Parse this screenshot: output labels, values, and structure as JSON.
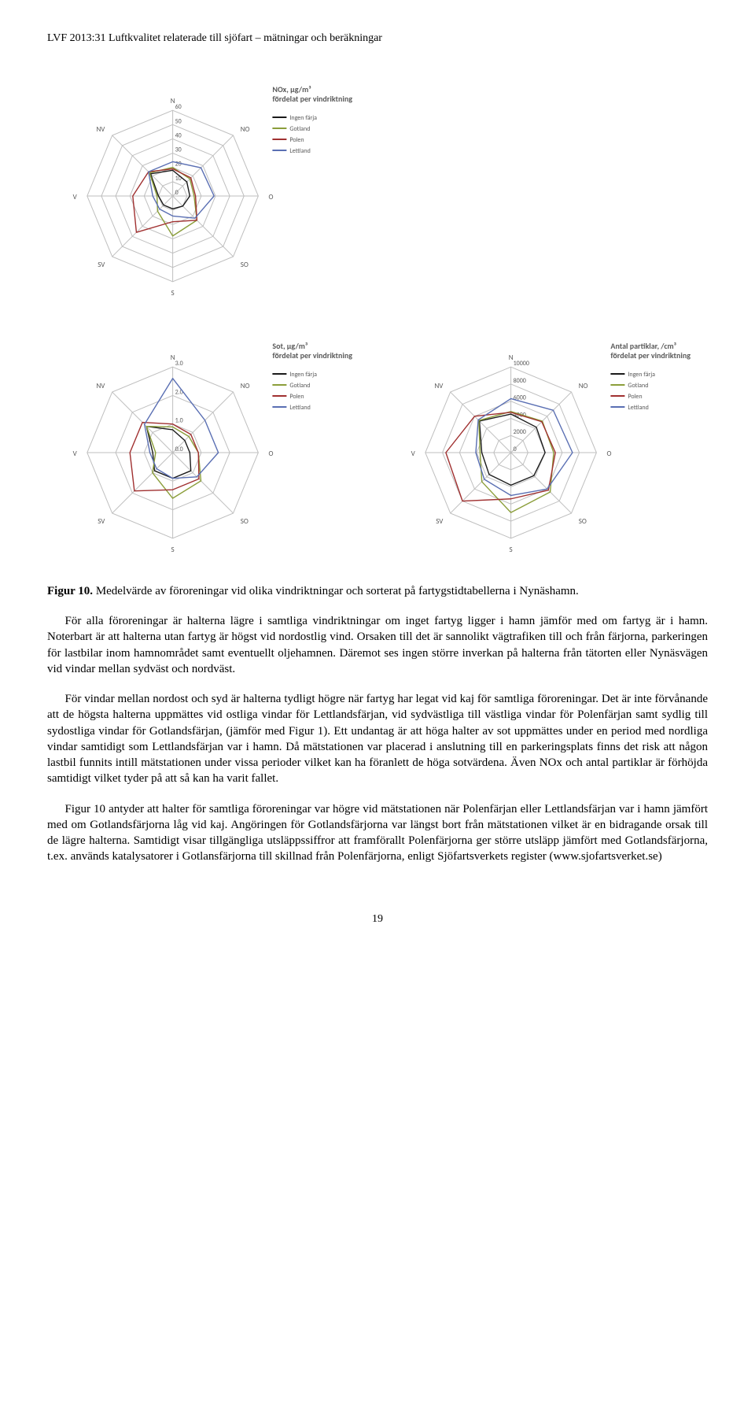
{
  "doc_header": "LVF 2013:31 Luftkvalitet relaterade till sjöfart – mätningar och beräkningar",
  "page_number": "19",
  "compass": [
    "N",
    "NO",
    "O",
    "SO",
    "S",
    "SV",
    "V",
    "NV"
  ],
  "legend_labels": [
    "Ingen färja",
    "Gotland",
    "Polen",
    "Lettland"
  ],
  "legend_colors": [
    "#1a1a1a",
    "#8b9e3a",
    "#a03030",
    "#5a6fb3"
  ],
  "chart_nox": {
    "title": "NOx, μg/m³ fördelat per vindriktning",
    "ring_labels": [
      "60",
      "50",
      "40",
      "30",
      "20",
      "10",
      "0"
    ],
    "max": 60,
    "series": {
      "Ingen färja": [
        18,
        14,
        12,
        10,
        9,
        9,
        10,
        22
      ],
      "Gotland": [
        20,
        17,
        15,
        24,
        28,
        15,
        11,
        23
      ],
      "Polen": [
        19,
        18,
        16,
        24,
        18,
        36,
        28,
        24
      ],
      "Lettland": [
        24,
        28,
        29,
        22,
        14,
        13,
        14,
        24
      ]
    }
  },
  "chart_sot": {
    "title": "Sot, μg/m³ fördelat per vindriktning",
    "ring_labels": [
      "3.0",
      "2.0",
      "1.0",
      "0.0"
    ],
    "max": 3.0,
    "series": {
      "Ingen färja": [
        0.8,
        0.6,
        0.6,
        0.9,
        0.9,
        0.9,
        0.7,
        1.3
      ],
      "Gotland": [
        0.9,
        0.8,
        0.9,
        1.4,
        1.6,
        1.0,
        0.6,
        1.3
      ],
      "Polen": [
        1.0,
        0.9,
        0.9,
        1.3,
        1.3,
        1.9,
        1.5,
        1.5
      ],
      "Lettland": [
        2.6,
        1.6,
        1.6,
        1.2,
        0.9,
        0.8,
        0.8,
        1.4
      ]
    }
  },
  "chart_particles": {
    "title": "Antal partiklar, /cm³ fördelat per vindriktning",
    "ring_labels": [
      "10000",
      "8000",
      "6000",
      "4000",
      "2000",
      "0"
    ],
    "max": 10000,
    "series": {
      "Ingen färja": [
        4500,
        4200,
        4000,
        3800,
        3800,
        3600,
        3400,
        5200
      ],
      "Gotland": [
        4800,
        5200,
        5000,
        6500,
        7000,
        4800,
        3600,
        5300
      ],
      "Polen": [
        4700,
        5100,
        5200,
        6200,
        5400,
        8000,
        7600,
        6000
      ],
      "Lettland": [
        6300,
        7000,
        7200,
        6000,
        5000,
        4400,
        4100,
        5400
      ]
    }
  },
  "fig_caption_prefix": "Figur 10.",
  "fig_caption_rest": " Medelvärde av föroreningar vid olika vindriktningar och sorterat på fartygstidtabellerna i Nynäshamn.",
  "para1": "För alla föroreningar är halterna lägre i samtliga vindriktningar om inget fartyg ligger i hamn jämför med om fartyg är i hamn. Noterbart är att halterna utan fartyg är högst vid nordostlig vind. Orsaken till det är sannolikt vägtrafiken till och från färjorna, parkeringen för lastbilar inom hamnområdet samt eventuellt oljehamnen. Däremot ses ingen större inverkan på halterna från tätorten eller Nynäsvägen vid vindar mellan sydväst och nordväst.",
  "para2": "För vindar mellan nordost och syd är halterna tydligt högre när fartyg har legat vid kaj för samtliga föroreningar. Det är inte förvånande att de högsta halterna uppmättes vid ostliga vindar för Lettlandsfärjan, vid sydvästliga till västliga vindar för Polenfärjan samt sydlig till sydostliga vindar för Gotlandsfärjan, (jämför med Figur 1). Ett undantag är att höga halter av sot uppmättes under en period med nordliga vindar samtidigt som Lettlandsfärjan var i hamn. Då mätstationen var placerad i anslutning till en parkeringsplats finns det risk att någon lastbil funnits intill mätstationen under vissa perioder vilket kan ha föranlett de höga sotvärdena. Även NOx och antal partiklar är förhöjda samtidigt vilket tyder på att så kan ha varit fallet.",
  "para3": "Figur 10 antyder att halter för samtliga föroreningar var högre vid mätstationen när Polenfärjan eller Lettlandsfärjan var i hamn jämfört med om Gotlandsfärjorna låg vid kaj. Angöringen för Gotlandsfärjorna var längst bort från mätstationen vilket är en bidragande orsak till de lägre halterna. Samtidigt visar tillgängliga utsläppssiffror att framförallt Polenfärjorna ger större utsläpp jämfört med Gotlandsfärjorna, t.ex. används katalysatorer i Gotlansfärjorna till skillnad från Polenfärjorna, enligt Sjöfartsverkets register (www.sjofartsverket.se)",
  "style": {
    "grid_color": "#bfbfbf",
    "axis_label_color": "#595959",
    "tick_label_color": "#595959",
    "title_color": "#595959",
    "title_fontsize": 10,
    "label_fontsize": 9,
    "tick_fontsize": 8,
    "legend_fontsize": 8,
    "line_width": 1.4
  }
}
